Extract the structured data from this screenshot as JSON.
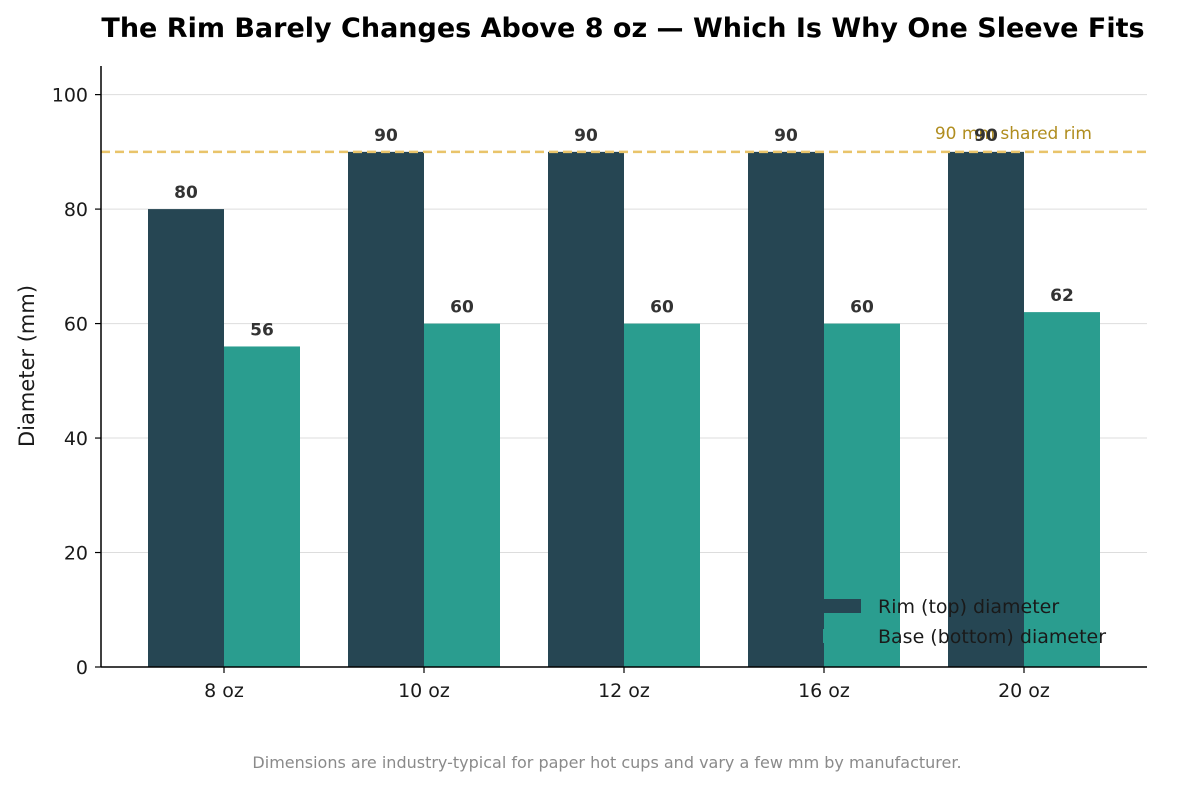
{
  "chart_data": {
    "type": "bar",
    "title": "The Rim Barely Changes Above 8 oz — Which Is Why One Sleeve Fits",
    "xlabel": "",
    "ylabel": "Diameter (mm)",
    "ylim": [
      0,
      105
    ],
    "yticks": [
      0,
      20,
      40,
      60,
      80,
      100
    ],
    "categories": [
      "8 oz",
      "10 oz",
      "12 oz",
      "16 oz",
      "20 oz"
    ],
    "series": [
      {
        "name": "Rim (top) diameter",
        "values": [
          80,
          90,
          90,
          90,
          90
        ],
        "color": "#264653"
      },
      {
        "name": "Base (bottom) diameter",
        "values": [
          56,
          60,
          60,
          60,
          62
        ],
        "color": "#2a9d8f"
      }
    ],
    "reference_line": {
      "value": 90,
      "label": "90 mm shared rim",
      "color": "#e9c46a",
      "label_color": "#b08d1f",
      "style": "dashed"
    },
    "grid": "y",
    "legend_position": "lower-right",
    "footnote": "Dimensions are industry-typical for paper hot cups and vary a few mm by manufacturer."
  }
}
